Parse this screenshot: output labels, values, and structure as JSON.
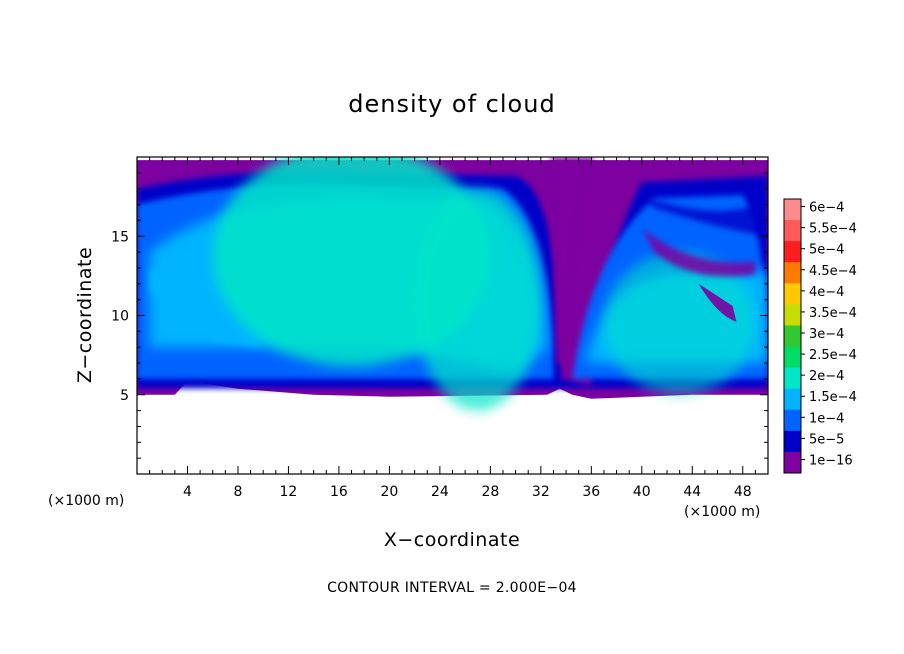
{
  "chart_data": {
    "type": "heatmap",
    "title": "density of cloud",
    "xlabel": "X−coordinate",
    "ylabel": "Z−coordinate",
    "x_unit_label_left": "(×1000 m)",
    "x_unit_label_right": "(×1000 m)",
    "xlim": [
      0,
      50
    ],
    "ylim": [
      0,
      20
    ],
    "x_ticks": [
      4,
      8,
      12,
      16,
      20,
      24,
      28,
      32,
      36,
      40,
      44,
      48
    ],
    "x_ticklabels": [
      "4",
      "8",
      "12",
      "16",
      "20",
      "24",
      "28",
      "32",
      "36",
      "40",
      "44",
      "48"
    ],
    "x_minor_step": 1,
    "y_ticks": [
      5,
      10,
      15
    ],
    "y_ticklabels": [
      "5",
      "10",
      "15"
    ],
    "y_minor_step": 1,
    "footer": "CONTOUR INTERVAL = 2.000E−04",
    "colorbar": {
      "labels": [
        "6e−4",
        "5.5e−4",
        "5e−4",
        "4.5e−4",
        "4e−4",
        "3.5e−4",
        "3e−4",
        "2.5e−4",
        "2e−4",
        "1.5e−4",
        "1e−4",
        "5e−5",
        "1e−16"
      ],
      "colors": [
        "#ff8c8c",
        "#ff5a5a",
        "#ff1e1e",
        "#ff7a00",
        "#ffc800",
        "#c8dc00",
        "#32c832",
        "#00dc64",
        "#00e6c8",
        "#00b4ff",
        "#0064ff",
        "#0000c8",
        "#7d00a0"
      ]
    },
    "cloud_base_km": 5,
    "cloud_top_km": 19.8,
    "field": {
      "background": "#7d00a0",
      "features": [
        {
          "name": "main anvil core",
          "x": [
            1,
            32
          ],
          "z": [
            8,
            18
          ],
          "level": "2e−4"
        },
        {
          "name": "right anvil core",
          "x": [
            36,
            50
          ],
          "z": [
            6,
            13
          ],
          "level": "1.5e−4"
        },
        {
          "name": "dry slot",
          "x": [
            33,
            36
          ],
          "z": [
            5,
            20
          ],
          "level": "1e−16"
        }
      ]
    }
  }
}
